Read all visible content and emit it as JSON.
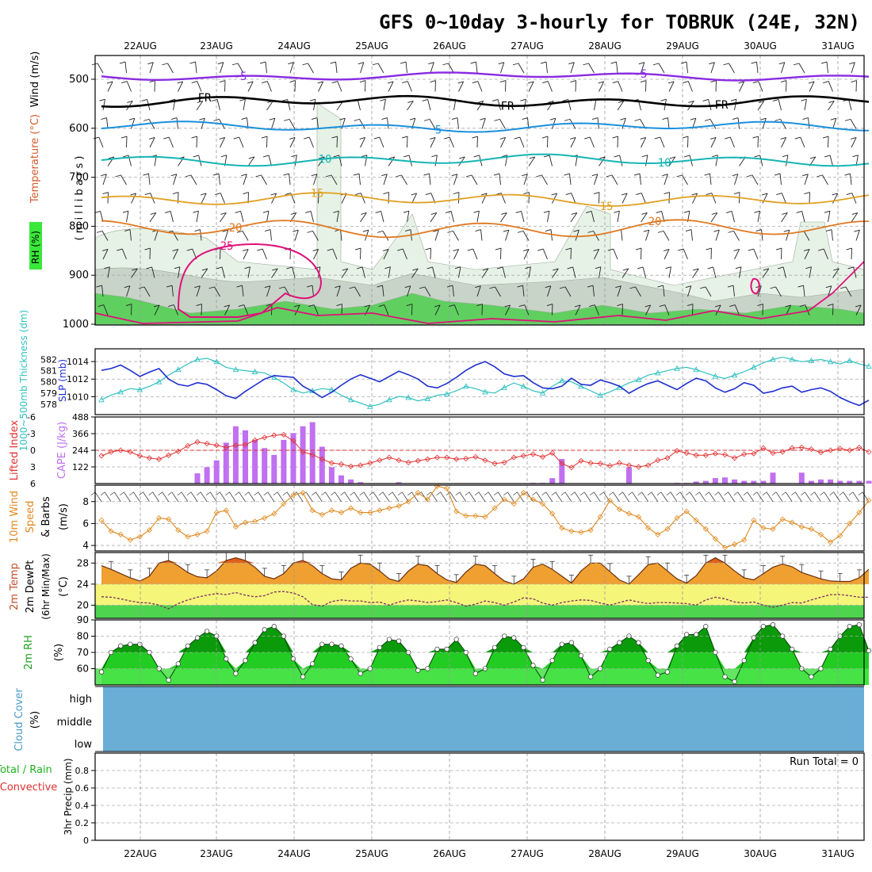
{
  "title": "GFS 0~10day 3-hourly for TOBRUK (24E, 32N)",
  "dates": [
    "22AUG",
    "23AUG",
    "24AUG",
    "25AUG",
    "26AUG",
    "27AUG",
    "28AUG",
    "29AUG",
    "30AUG",
    "31AUG"
  ],
  "colors": {
    "purple": "#8a2be2",
    "black": "#000000",
    "blue": "#1a90dd",
    "cyan": "#16b5b5",
    "gold": "#e0a020",
    "orange": "#e07820",
    "magenta": "#e0107a",
    "slp": "#1e2fcf",
    "thickness": "#30c0c0",
    "li": "#e03030",
    "cape": "#c070f0",
    "wind": "#e08a20",
    "cloud": "#6aaed6",
    "rh_dark": "#0a9a0a",
    "rh_light": "#3ae83a"
  },
  "panels": {
    "upper": {
      "side_labels": [
        "Wind (m/s)",
        "Temperature (°C)",
        "RH (%)"
      ],
      "ylabel": "( m i l l i b a r s )",
      "yticks": [
        "500",
        "600",
        "700",
        "800",
        "900",
        "1000"
      ],
      "isotherm_labels": [
        "-5",
        "FR",
        "5",
        "10",
        "15",
        "20",
        "25"
      ]
    },
    "slp_thick": {
      "label_left": "1000~500mb Thickness (dm)",
      "label_right": "SLP (mb)",
      "thick_ticks": [
        "582",
        "581",
        "580",
        "579",
        "578"
      ],
      "slp_ticks": [
        "1014",
        "1012",
        "1010"
      ]
    },
    "cape_li": {
      "label_left": "Lifted Index",
      "label_right": "CAPE (J/kg)",
      "li_ticks": [
        "-6",
        "-3",
        "0",
        "3",
        "6"
      ],
      "cape_ticks": [
        "488",
        "366",
        "244",
        "122"
      ]
    },
    "wind10m": {
      "label": "10m Wind",
      "label2": "Speed",
      "label3": "& Barbs",
      "unit": "(m/s)",
      "yticks": [
        "8",
        "6",
        "4"
      ]
    },
    "temp2m": {
      "label": "2m Temp",
      "label2": "2m DewPt",
      "label3": "(6hr Min/Max)",
      "unit": "(°C)",
      "yticks": [
        "28",
        "24",
        "20"
      ]
    },
    "rh2m": {
      "label": "2m RH",
      "unit": "(%)",
      "yticks": [
        "90",
        "80",
        "70",
        "60"
      ]
    },
    "cloud": {
      "label": "Cloud Cover",
      "unit": "(%)",
      "levels": [
        "high",
        "middle",
        "low"
      ]
    },
    "precip": {
      "label": "Total / Rain",
      "label2": "Convective",
      "ylabel": "3hr Precip (mm)",
      "yticks": [
        "0.8",
        "0.6",
        "0.4",
        "0.2",
        "0"
      ],
      "run_total": "Run Total = 0"
    }
  },
  "chart_data": [
    {
      "type": "line",
      "name": "SLP",
      "unit": "mb",
      "ylim": [
        1008.5,
        1015
      ],
      "x": [
        0,
        1,
        2,
        3,
        4,
        5,
        6,
        7,
        8,
        9,
        10,
        11,
        12,
        13,
        14,
        15,
        16,
        17,
        18,
        19,
        20,
        21,
        22,
        23,
        24,
        25,
        26,
        27,
        28,
        29,
        30,
        31,
        32,
        33,
        34,
        35,
        36,
        37,
        38,
        39,
        40,
        41,
        42,
        43,
        44,
        45,
        46,
        47,
        48,
        49,
        50,
        51,
        52,
        53,
        54,
        55,
        56,
        57,
        58,
        59,
        60,
        61,
        62,
        63,
        64,
        65,
        66,
        67,
        68,
        69,
        70,
        71,
        72,
        73,
        74,
        75,
        76,
        77,
        78,
        79,
        80
      ],
      "values": [
        1013.0,
        1013.2,
        1013.6,
        1013.0,
        1012.3,
        1012.8,
        1013.2,
        1012.0,
        1011.4,
        1011.2,
        1011.6,
        1011.4,
        1010.8,
        1010.1,
        1009.8,
        1010.6,
        1011.3,
        1012.0,
        1012.4,
        1012.3,
        1012.2,
        1011.2,
        1010.6,
        1009.9,
        1010.5,
        1011.3,
        1012.0,
        1012.5,
        1012.1,
        1011.7,
        1012.3,
        1012.9,
        1012.5,
        1012.0,
        1011.2,
        1011.0,
        1011.5,
        1012.2,
        1013.0,
        1013.6,
        1014.0,
        1013.4,
        1012.6,
        1012.3,
        1012.4,
        1011.6,
        1011.0,
        1010.9,
        1011.2,
        1012.1,
        1011.4,
        1011.3,
        1011.9,
        1011.6,
        1011.2,
        1010.4,
        1011.0,
        1011.5,
        1011.8,
        1011.3,
        1010.8,
        1011.5,
        1012.1,
        1011.8,
        1011.0,
        1010.5,
        1010.9,
        1011.6,
        1011.3,
        1010.4,
        1010.6,
        1011.0,
        1011.2,
        1010.5,
        1010.8,
        1011.0,
        1010.6,
        1009.9,
        1009.4,
        1009.0,
        1009.6
      ]
    },
    {
      "type": "line",
      "name": "1000~500mb Thickness",
      "unit": "dm",
      "ylim": [
        577.5,
        582.6
      ],
      "x": [
        0,
        1,
        2,
        3,
        4,
        5,
        6,
        7,
        8,
        9,
        10,
        11,
        12,
        13,
        14,
        15,
        16,
        17,
        18,
        19,
        20,
        21,
        22,
        23,
        24,
        25,
        26,
        27,
        28,
        29,
        30,
        31,
        32,
        33,
        34,
        35,
        36,
        37,
        38,
        39,
        40,
        41,
        42,
        43,
        44,
        45,
        46,
        47,
        48,
        49,
        50,
        51,
        52,
        53,
        54,
        55,
        56,
        57,
        58,
        59,
        60,
        61,
        62,
        63,
        64,
        65,
        66,
        67,
        68,
        69,
        70,
        71,
        72,
        73,
        74,
        75,
        76,
        77,
        78,
        79,
        80
      ],
      "values": [
        578.4,
        578.8,
        579.1,
        579.4,
        579.3,
        579.6,
        580.0,
        580.6,
        581.1,
        581.6,
        582.0,
        582.1,
        581.8,
        581.3,
        581.1,
        581.0,
        580.9,
        580.8,
        580.4,
        579.9,
        579.3,
        579.0,
        579.2,
        579.4,
        579.3,
        578.8,
        578.4,
        578.1,
        577.8,
        578.0,
        578.4,
        578.7,
        578.6,
        578.3,
        578.5,
        578.8,
        578.9,
        579.2,
        579.6,
        579.4,
        579.1,
        579.0,
        579.5,
        579.9,
        579.6,
        579.2,
        579.0,
        579.6,
        580.1,
        580.0,
        579.6,
        579.2,
        578.8,
        579.1,
        579.5,
        579.9,
        580.2,
        580.6,
        580.8,
        581.0,
        581.2,
        581.3,
        581.1,
        580.8,
        580.5,
        580.3,
        580.6,
        580.9,
        581.3,
        581.7,
        582.0,
        582.2,
        582.0,
        581.8,
        581.9,
        582.0,
        581.8,
        581.6,
        581.9,
        581.6,
        581.4
      ]
    },
    {
      "type": "bar",
      "name": "CAPE",
      "unit": "J/kg",
      "ylim": [
        0,
        488
      ],
      "x": [
        10,
        11,
        12,
        13,
        14,
        15,
        16,
        17,
        18,
        19,
        20,
        21,
        22,
        23,
        24,
        25,
        26,
        27,
        31,
        45,
        46,
        47,
        48,
        55,
        60,
        61,
        62,
        63,
        64,
        65,
        66,
        67,
        68,
        69,
        70,
        73,
        74,
        75,
        76,
        77,
        78,
        79,
        80
      ],
      "values": [
        75,
        120,
        170,
        300,
        420,
        390,
        320,
        260,
        210,
        320,
        370,
        420,
        450,
        270,
        120,
        60,
        30,
        10,
        10,
        5,
        5,
        40,
        180,
        120,
        5,
        5,
        15,
        20,
        40,
        45,
        30,
        20,
        20,
        20,
        80,
        80,
        20,
        30,
        30,
        20,
        20,
        20,
        20
      ]
    },
    {
      "type": "line",
      "name": "Lifted Index",
      "ylim": [
        6,
        -6
      ],
      "x": [
        0,
        1,
        2,
        3,
        4,
        5,
        6,
        7,
        8,
        9,
        10,
        11,
        12,
        13,
        14,
        15,
        16,
        17,
        18,
        19,
        20,
        21,
        22,
        23,
        24,
        25,
        26,
        27,
        28,
        29,
        30,
        31,
        32,
        33,
        34,
        35,
        36,
        37,
        38,
        39,
        40,
        41,
        42,
        43,
        44,
        45,
        46,
        47,
        48,
        49,
        50,
        51,
        52,
        53,
        54,
        55,
        56,
        57,
        58,
        59,
        60,
        61,
        62,
        63,
        64,
        65,
        66,
        67,
        68,
        69,
        70,
        71,
        72,
        73,
        74,
        75,
        76,
        77,
        78,
        79,
        80
      ],
      "values": [
        1,
        0.3,
        0,
        0.3,
        1,
        1.4,
        1.6,
        0.9,
        0.2,
        -0.8,
        -1.5,
        -1.2,
        -0.9,
        -0.5,
        -0.9,
        -1,
        -1.8,
        -2.3,
        -2.7,
        -2.8,
        -1.7,
        0.3,
        0.8,
        1.6,
        2.3,
        2.5,
        2.9,
        2.7,
        2.3,
        1.8,
        1.3,
        1.8,
        2.2,
        1.9,
        1.6,
        1.3,
        1.3,
        1.6,
        1.5,
        1.2,
        1.8,
        2.4,
        2.2,
        1.3,
        1.0,
        0.7,
        1.2,
        0.5,
        2.4,
        3.1,
        1.9,
        2.3,
        2.4,
        2.8,
        2.3,
        2.7,
        3.0,
        2.7,
        1.8,
        1.4,
        0.1,
        0.5,
        0.9,
        0.9,
        0.6,
        0.8,
        1.4,
        0.7,
        0.6,
        -0.4,
        0.5,
        0.3,
        -0.4,
        -0.5,
        -0.2,
        0.4,
        0.0,
        -0.3,
        0.0,
        -0.5,
        0.3
      ]
    },
    {
      "type": "line",
      "name": "10m Wind Speed",
      "unit": "m/s",
      "ylim": [
        3.5,
        9.5
      ],
      "x": [
        0,
        1,
        2,
        3,
        4,
        5,
        6,
        7,
        8,
        9,
        10,
        11,
        12,
        13,
        14,
        15,
        16,
        17,
        18,
        19,
        20,
        21,
        22,
        23,
        24,
        25,
        26,
        27,
        28,
        29,
        30,
        31,
        32,
        33,
        34,
        35,
        36,
        37,
        38,
        39,
        40,
        41,
        42,
        43,
        44,
        45,
        46,
        47,
        48,
        49,
        50,
        51,
        52,
        53,
        54,
        55,
        56,
        57,
        58,
        59,
        60,
        61,
        62,
        63,
        64,
        65,
        66,
        67,
        68,
        69,
        70,
        71,
        72,
        73,
        74,
        75,
        76,
        77,
        78,
        79,
        80
      ],
      "values": [
        6.3,
        5.3,
        5.0,
        4.5,
        4.8,
        5.4,
        6.5,
        6.4,
        5.4,
        4.8,
        5.0,
        5.3,
        7.0,
        7.2,
        5.7,
        6.1,
        6.2,
        6.5,
        6.9,
        7.8,
        8.6,
        8.8,
        7.2,
        6.8,
        7.2,
        7.0,
        7.4,
        7.0,
        7.0,
        7.2,
        7.4,
        7.6,
        8.0,
        8.8,
        8.2,
        9.4,
        9.2,
        7.1,
        6.7,
        6.7,
        6.6,
        7.4,
        8.2,
        7.8,
        8.8,
        8.2,
        7.8,
        6.9,
        5.6,
        5.3,
        5.2,
        5.4,
        6.6,
        8.1,
        7.3,
        6.9,
        6.6,
        5.6,
        5.0,
        5.5,
        6.5,
        7.1,
        6.3,
        5.5,
        4.6,
        3.8,
        4.1,
        4.5,
        6.3,
        5.6,
        5.5,
        6.4,
        6.1,
        5.7,
        5.5,
        5.0,
        4.3,
        4.9,
        6.0,
        7.0,
        8.1
      ]
    },
    {
      "type": "area",
      "name": "2m Temp",
      "unit": "°C",
      "ylim": [
        17.5,
        30
      ],
      "x": [
        0,
        1,
        2,
        3,
        4,
        5,
        6,
        7,
        8,
        9,
        10,
        11,
        12,
        13,
        14,
        15,
        16,
        17,
        18,
        19,
        20,
        21,
        22,
        23,
        24,
        25,
        26,
        27,
        28,
        29,
        30,
        31,
        32,
        33,
        34,
        35,
        36,
        37,
        38,
        39,
        40,
        41,
        42,
        43,
        44,
        45,
        46,
        47,
        48,
        49,
        50,
        51,
        52,
        53,
        54,
        55,
        56,
        57,
        58,
        59,
        60,
        61,
        62,
        63,
        64,
        65,
        66,
        67,
        68,
        69,
        70,
        71,
        72,
        73,
        74,
        75,
        76,
        77,
        78,
        79,
        80
      ],
      "values": [
        27.5,
        26.8,
        26.0,
        25.2,
        24.6,
        25.5,
        28.0,
        28.5,
        27.5,
        26.2,
        25.4,
        25.2,
        26.5,
        28.5,
        29.0,
        28.5,
        27.2,
        25.5,
        25.0,
        26.0,
        28.0,
        28.5,
        27.5,
        26.0,
        25.0,
        24.8,
        27.0,
        28.0,
        27.8,
        26.5,
        25.0,
        24.5,
        26.5,
        27.8,
        27.5,
        26.0,
        24.8,
        24.3,
        26.3,
        27.8,
        27.5,
        26.0,
        24.6,
        24.0,
        25.0,
        27.2,
        27.8,
        26.8,
        25.5,
        24.2,
        26.5,
        28.0,
        28.0,
        26.4,
        24.8,
        24.0,
        25.8,
        27.7,
        28.0,
        26.5,
        25.0,
        24.2,
        25.6,
        28.0,
        29.0,
        28.0,
        26.5,
        25.2,
        24.8,
        26.0,
        27.2,
        27.8,
        27.3,
        26.2,
        25.6,
        25.0,
        24.6,
        24.5,
        24.5,
        25.2,
        26.8
      ]
    },
    {
      "type": "line",
      "name": "2m DewPt",
      "unit": "°C",
      "ylim": [
        17.5,
        30
      ],
      "x": [
        0,
        1,
        2,
        3,
        4,
        5,
        6,
        7,
        8,
        9,
        10,
        11,
        12,
        13,
        14,
        15,
        16,
        17,
        18,
        19,
        20,
        21,
        22,
        23,
        24,
        25,
        26,
        27,
        28,
        29,
        30,
        31,
        32,
        33,
        34,
        35,
        36,
        37,
        38,
        39,
        40,
        41,
        42,
        43,
        44,
        45,
        46,
        47,
        48,
        49,
        50,
        51,
        52,
        53,
        54,
        55,
        56,
        57,
        58,
        59,
        60,
        61,
        62,
        63,
        64,
        65,
        66,
        67,
        68,
        69,
        70,
        71,
        72,
        73,
        74,
        75,
        76,
        77,
        78,
        79,
        80
      ],
      "values": [
        21.6,
        21.5,
        21.2,
        20.8,
        20.5,
        20.4,
        20.0,
        19.3,
        20.3,
        21.0,
        21.5,
        21.9,
        22.2,
        22.0,
        22.4,
        21.9,
        21.6,
        21.8,
        22.5,
        22.6,
        22.3,
        21.6,
        20.1,
        19.8,
        20.7,
        21.0,
        20.8,
        20.8,
        20.5,
        20.6,
        20.0,
        20.6,
        21.0,
        20.8,
        20.5,
        20.7,
        21.0,
        20.5,
        19.8,
        20.2,
        20.8,
        20.5,
        20.0,
        20.6,
        21.4,
        21.2,
        20.4,
        20.0,
        20.5,
        20.8,
        21.0,
        20.9,
        20.4,
        20.0,
        20.5,
        21.0,
        20.6,
        20.3,
        20.5,
        20.5,
        20.4,
        20.3,
        20.0,
        21.0,
        21.5,
        21.2,
        20.6,
        20.4,
        20.6,
        20.0,
        19.6,
        20.0,
        20.5,
        20.4,
        21.0,
        21.5,
        22.0,
        22.0,
        21.8,
        21.5,
        21.5
      ]
    },
    {
      "type": "area",
      "name": "2m RH",
      "unit": "%",
      "ylim": [
        50,
        90
      ],
      "x": [
        0,
        1,
        2,
        3,
        4,
        5,
        6,
        7,
        8,
        9,
        10,
        11,
        12,
        13,
        14,
        15,
        16,
        17,
        18,
        19,
        20,
        21,
        22,
        23,
        24,
        25,
        26,
        27,
        28,
        29,
        30,
        31,
        32,
        33,
        34,
        35,
        36,
        37,
        38,
        39,
        40,
        41,
        42,
        43,
        44,
        45,
        46,
        47,
        48,
        49,
        50,
        51,
        52,
        53,
        54,
        55,
        56,
        57,
        58,
        59,
        60,
        61,
        62,
        63,
        64,
        65,
        66,
        67,
        68,
        69,
        70,
        71,
        72,
        73,
        74,
        75,
        76,
        77,
        78,
        79,
        80
      ],
      "values": [
        58,
        70,
        74,
        75,
        75,
        70,
        60,
        53,
        63,
        74,
        79,
        83,
        80,
        66,
        57,
        65,
        76,
        84,
        86,
        80,
        66,
        55,
        63,
        75,
        75,
        74,
        66,
        57,
        60,
        73,
        78,
        77,
        70,
        59,
        60,
        72,
        72,
        78,
        70,
        57,
        60,
        73,
        80,
        79,
        73,
        62,
        53,
        65,
        75,
        76,
        68,
        55,
        60,
        72,
        76,
        80,
        76,
        65,
        56,
        58,
        74,
        81,
        81,
        86,
        70,
        55,
        52,
        65,
        79,
        86,
        87,
        80,
        72,
        60,
        55,
        60,
        72,
        80,
        86,
        87,
        71
      ]
    },
    {
      "type": "line",
      "name": "3hr Precip",
      "unit": "mm",
      "ylim": [
        0,
        1
      ],
      "values": []
    }
  ]
}
